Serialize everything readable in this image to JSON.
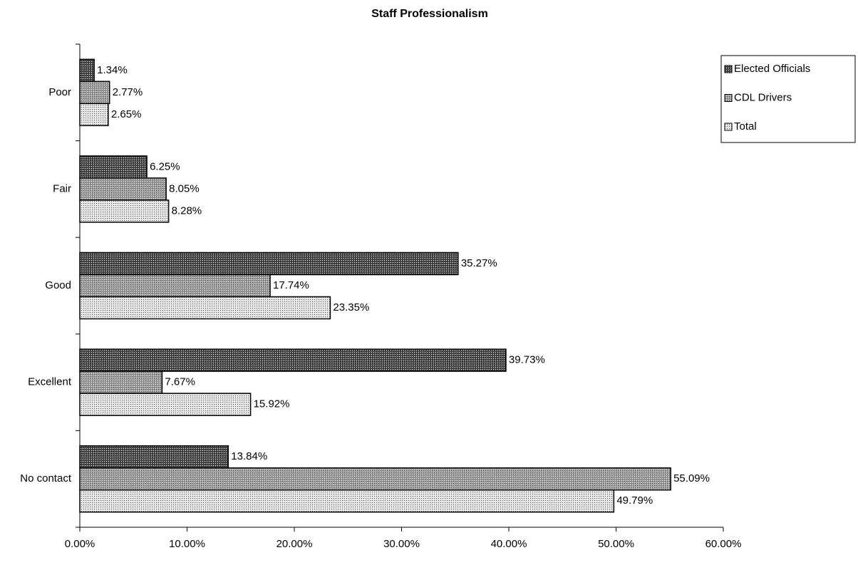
{
  "chart_data": {
    "type": "bar",
    "orientation": "horizontal",
    "title": "Staff Professionalism",
    "categories": [
      "Poor",
      "Fair",
      "Good",
      "Excellent",
      "No contact"
    ],
    "series": [
      {
        "name": "Elected Officials",
        "color": "#4a4a4a",
        "values": [
          1.34,
          6.25,
          35.27,
          39.73,
          13.84
        ],
        "value_labels": [
          "1.34%",
          "6.25%",
          "35.27%",
          "39.73%",
          "13.84%"
        ]
      },
      {
        "name": "CDL Drivers",
        "color": "#9a9a9a",
        "values": [
          2.77,
          8.05,
          17.74,
          7.67,
          55.09
        ],
        "value_labels": [
          "2.77%",
          "8.05%",
          "17.74%",
          "7.67%",
          "55.09%"
        ]
      },
      {
        "name": "Total",
        "color": "#e2e2e2",
        "values": [
          2.65,
          8.28,
          23.35,
          15.92,
          49.79
        ],
        "value_labels": [
          "2.65%",
          "8.28%",
          "23.35%",
          "15.92%",
          "49.79%"
        ]
      }
    ],
    "xlim": [
      0,
      60
    ],
    "xticks": [
      {
        "value": 0,
        "label": "0.00%"
      },
      {
        "value": 10,
        "label": "10.00%"
      },
      {
        "value": 20,
        "label": "20.00%"
      },
      {
        "value": 30,
        "label": "30.00%"
      },
      {
        "value": 40,
        "label": "40.00%"
      },
      {
        "value": 50,
        "label": "50.00%"
      },
      {
        "value": 60,
        "label": "60.00%"
      }
    ],
    "grid": false,
    "legend": "upper right"
  }
}
